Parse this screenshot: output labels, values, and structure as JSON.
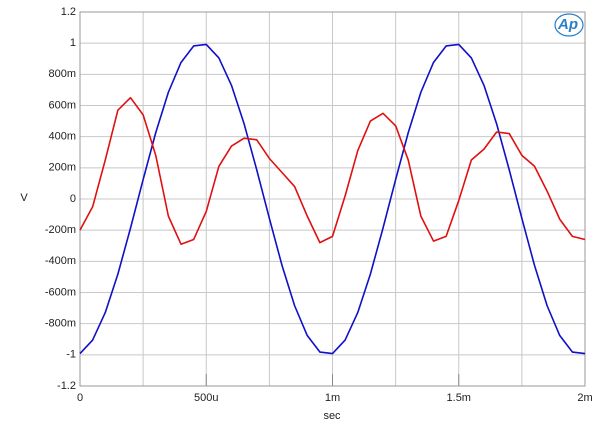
{
  "chart_data": {
    "type": "line",
    "xlabel": "sec",
    "ylabel": "V",
    "logo": "Ap",
    "x": [
      0,
      5e-05,
      0.0001,
      0.00015,
      0.0002,
      0.00025,
      0.0003,
      0.00035,
      0.0004,
      0.00045,
      0.0005,
      0.00055,
      0.0006,
      0.00065,
      0.0007,
      0.00075,
      0.0008,
      0.00085,
      0.0009,
      0.00095,
      0.001,
      0.00105,
      0.0011,
      0.00115,
      0.0012,
      0.00125,
      0.0013,
      0.00135,
      0.0014,
      0.00145,
      0.0015,
      0.00155,
      0.0016,
      0.00165,
      0.0017,
      0.00175,
      0.0018,
      0.00185,
      0.0019,
      0.00195,
      0.002
    ],
    "series": [
      {
        "name": "Blue",
        "color": "#1010c8",
        "values": [
          -0.992,
          -0.905,
          -0.729,
          -0.482,
          -0.187,
          0.125,
          0.426,
          0.685,
          0.876,
          0.982,
          0.992,
          0.905,
          0.729,
          0.482,
          0.187,
          -0.125,
          -0.426,
          -0.685,
          -0.876,
          -0.982,
          -0.992,
          -0.905,
          -0.729,
          -0.482,
          -0.187,
          0.125,
          0.426,
          0.685,
          0.876,
          0.982,
          0.992,
          0.905,
          0.729,
          0.482,
          0.187,
          -0.125,
          -0.426,
          -0.685,
          -0.876,
          -0.982,
          -0.992
        ]
      },
      {
        "name": "Red",
        "color": "#e01010",
        "values": [
          -0.2,
          -0.05,
          0.25,
          0.57,
          0.65,
          0.54,
          0.28,
          -0.11,
          -0.29,
          -0.26,
          -0.08,
          0.21,
          0.34,
          0.39,
          0.38,
          0.26,
          0.17,
          0.08,
          -0.11,
          -0.28,
          -0.24,
          0.02,
          0.31,
          0.5,
          0.55,
          0.47,
          0.25,
          -0.11,
          -0.27,
          -0.24,
          -0.01,
          0.25,
          0.32,
          0.43,
          0.42,
          0.28,
          0.21,
          0.05,
          -0.13,
          -0.24,
          -0.26
        ]
      }
    ],
    "xlim": [
      0,
      0.002
    ],
    "xticks": [
      {
        "value": 0,
        "label": "0"
      },
      {
        "value": 0.0005,
        "label": "500u"
      },
      {
        "value": 0.001,
        "label": "1m"
      },
      {
        "value": 0.0015,
        "label": "1.5m"
      },
      {
        "value": 0.002,
        "label": "2m"
      }
    ],
    "xgrid": [
      0,
      0.00025,
      0.0005,
      0.00075,
      0.001,
      0.00125,
      0.0015,
      0.00175,
      0.002
    ],
    "ylim": [
      -1.2,
      1.2
    ],
    "yticks": [
      1.2,
      1,
      {
        "value": 0.8,
        "label": "800m"
      },
      {
        "value": 0.6,
        "label": "600m"
      },
      {
        "value": 0.4,
        "label": "400m"
      },
      {
        "value": 0.2,
        "label": "200m"
      },
      0,
      {
        "value": -0.2,
        "label": "-200m"
      },
      {
        "value": -0.4,
        "label": "-400m"
      },
      {
        "value": -0.6,
        "label": "-600m"
      },
      {
        "value": -0.8,
        "label": "-800m"
      },
      -1,
      -1.2
    ],
    "grid": true
  }
}
